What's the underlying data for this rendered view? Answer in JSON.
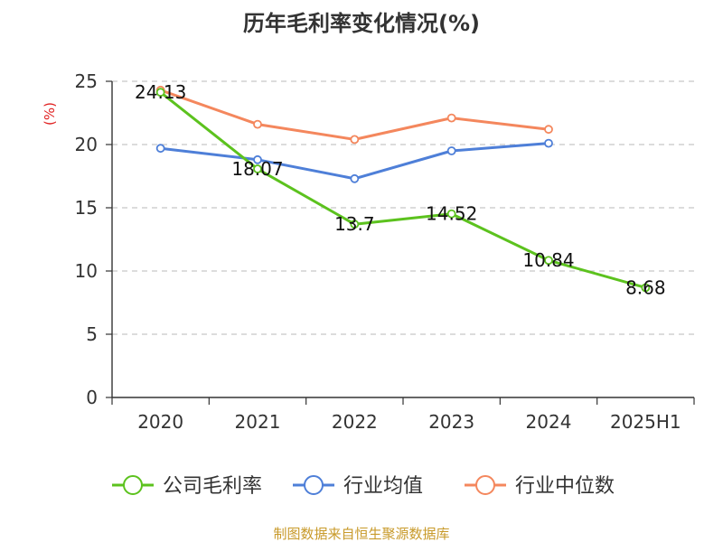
{
  "source": "制图数据来自恒生聚源数据库",
  "chart_data": {
    "type": "line",
    "title": "历年毛利率变化情况(%)",
    "ylabel": "(%)",
    "xlabel": "",
    "categories": [
      "2020",
      "2021",
      "2022",
      "2023",
      "2024",
      "2025H1"
    ],
    "ylim": [
      0,
      25
    ],
    "yticks": [
      0,
      5,
      10,
      15,
      20,
      25
    ],
    "grid": true,
    "legend_position": "bottom",
    "series": [
      {
        "name": "公司毛利率",
        "color": "#5cc21e",
        "values": [
          24.13,
          18.07,
          13.7,
          14.52,
          10.84,
          8.68
        ],
        "labels": [
          "24.13",
          "18.07",
          "13.7",
          "14.52",
          "10.84",
          "8.68"
        ]
      },
      {
        "name": "行业均值",
        "color": "#4e7fd8",
        "values": [
          19.7,
          18.8,
          17.3,
          19.5,
          20.1,
          null
        ]
      },
      {
        "name": "行业中位数",
        "color": "#f4875d",
        "values": [
          24.3,
          21.6,
          20.4,
          22.1,
          21.2,
          null
        ]
      }
    ]
  }
}
